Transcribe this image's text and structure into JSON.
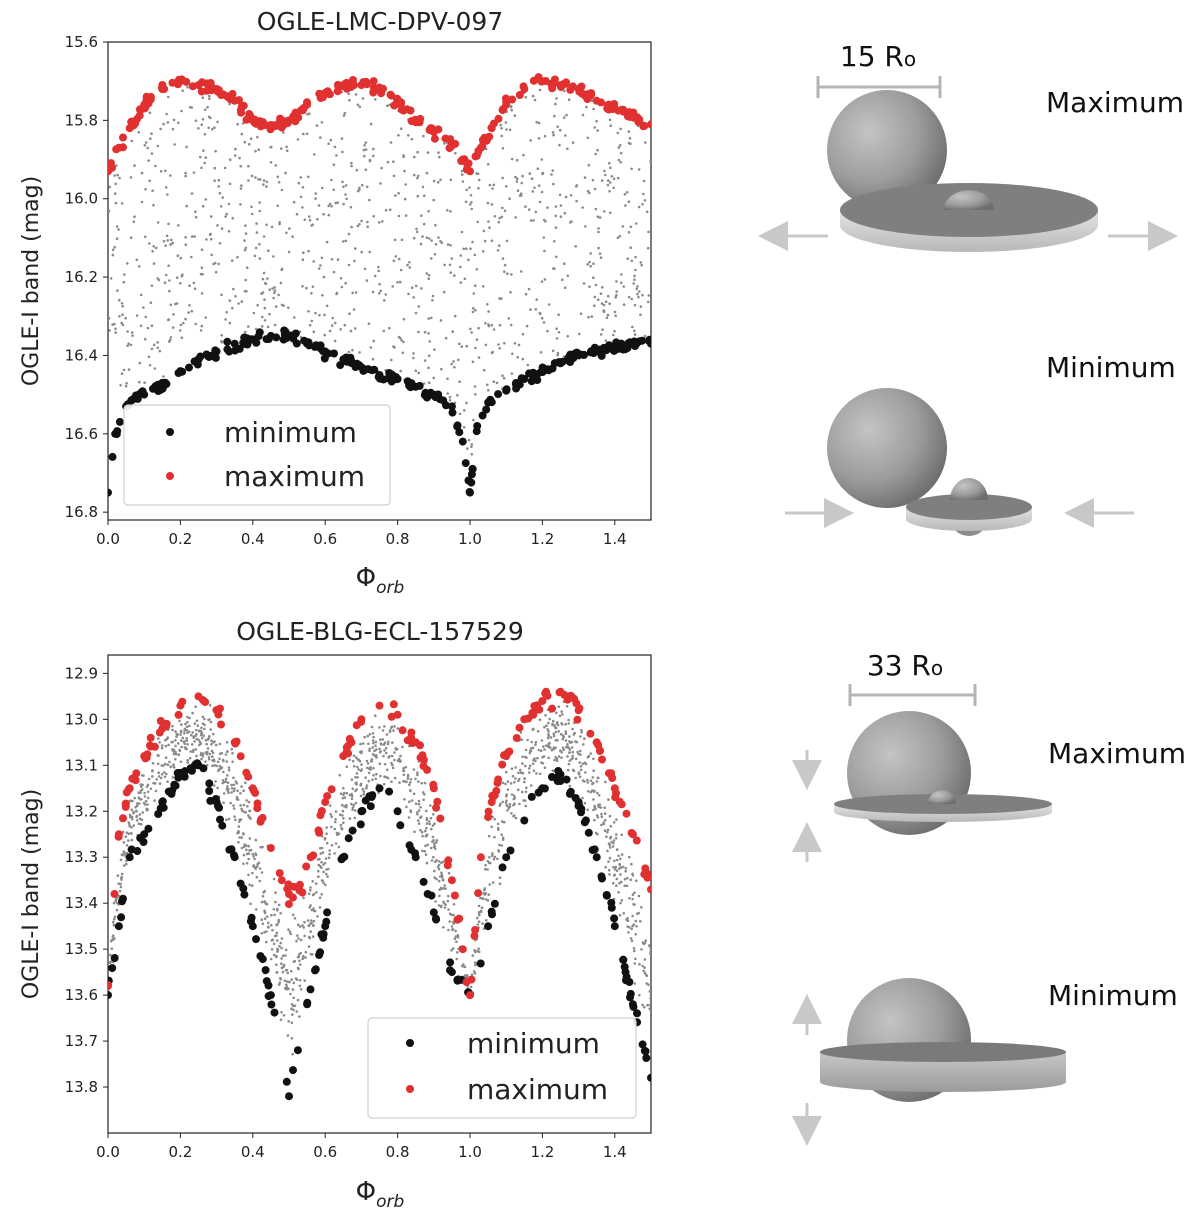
{
  "chart_data": [
    {
      "type": "scatter",
      "title": "OGLE-LMC-DPV-097",
      "xlabel": "Φ",
      "xlabel_sub": "orb",
      "ylabel": "OGLE-I band (mag)",
      "xlim": [
        0.0,
        1.5
      ],
      "ylim": [
        16.82,
        15.6
      ],
      "y_inverted": true,
      "xticks": [
        0.0,
        0.2,
        0.4,
        0.6,
        0.8,
        1.0,
        1.2,
        1.4
      ],
      "xtick_labels": [
        "0.0",
        "0.2",
        "0.4",
        "0.6",
        "0.8",
        "1.0",
        "1.2",
        "1.4"
      ],
      "yticks": [
        15.6,
        15.8,
        16.0,
        16.2,
        16.4,
        16.6,
        16.8
      ],
      "ytick_labels": [
        "15.6",
        "15.8",
        "16.0",
        "16.2",
        "16.4",
        "16.6",
        "16.8"
      ],
      "legend": {
        "position": "lower-left",
        "entries": [
          "minimum",
          "maximum"
        ]
      },
      "series": [
        {
          "name": "all data",
          "color": "#8a8a8a",
          "marker": "small-dot",
          "description_range": [
            15.8,
            16.55
          ]
        },
        {
          "name": "minimum",
          "color": "#111111",
          "marker": "dot",
          "x": [
            0.0,
            0.02,
            0.05,
            0.1,
            0.15,
            0.2,
            0.25,
            0.3,
            0.35,
            0.4,
            0.45,
            0.5,
            0.55,
            0.6,
            0.65,
            0.7,
            0.75,
            0.8,
            0.85,
            0.9,
            0.95,
            0.98,
            1.0,
            1.02,
            1.05,
            1.1,
            1.15,
            1.2,
            1.25,
            1.3,
            1.35,
            1.4,
            1.45,
            1.5
          ],
          "y": [
            16.75,
            16.6,
            16.53,
            16.5,
            16.47,
            16.44,
            16.41,
            16.39,
            16.37,
            16.36,
            16.35,
            16.35,
            16.37,
            16.39,
            16.41,
            16.43,
            16.45,
            16.46,
            16.48,
            16.5,
            16.53,
            16.62,
            16.75,
            16.58,
            16.52,
            16.49,
            16.46,
            16.44,
            16.42,
            16.4,
            16.39,
            16.38,
            16.37,
            16.37
          ]
        },
        {
          "name": "maximum",
          "color": "#e03030",
          "marker": "dot",
          "x": [
            0.0,
            0.03,
            0.06,
            0.1,
            0.15,
            0.2,
            0.25,
            0.3,
            0.35,
            0.4,
            0.45,
            0.5,
            0.55,
            0.6,
            0.65,
            0.7,
            0.75,
            0.8,
            0.85,
            0.9,
            0.95,
            0.98,
            1.0,
            1.03,
            1.06,
            1.1,
            1.15,
            1.2,
            1.25,
            1.3,
            1.35,
            1.4,
            1.45,
            1.5
          ],
          "y": [
            15.93,
            15.87,
            15.82,
            15.76,
            15.72,
            15.7,
            15.71,
            15.72,
            15.75,
            15.8,
            15.82,
            15.8,
            15.76,
            15.73,
            15.71,
            15.71,
            15.72,
            15.75,
            15.8,
            15.83,
            15.86,
            15.9,
            15.93,
            15.87,
            15.82,
            15.76,
            15.72,
            15.7,
            15.71,
            15.72,
            15.75,
            15.77,
            15.79,
            15.81
          ]
        }
      ]
    },
    {
      "type": "scatter",
      "title": "OGLE-BLG-ECL-157529",
      "xlabel": "Φ",
      "xlabel_sub": "orb",
      "ylabel": "OGLE-I band (mag)",
      "xlim": [
        0.0,
        1.5
      ],
      "ylim": [
        13.9,
        12.86
      ],
      "y_inverted": true,
      "xticks": [
        0.0,
        0.2,
        0.4,
        0.6,
        0.8,
        1.0,
        1.2,
        1.4
      ],
      "xtick_labels": [
        "0.0",
        "0.2",
        "0.4",
        "0.6",
        "0.8",
        "1.0",
        "1.2",
        "1.4"
      ],
      "yticks": [
        12.9,
        13.0,
        13.1,
        13.2,
        13.3,
        13.4,
        13.5,
        13.6,
        13.7,
        13.8
      ],
      "ytick_labels": [
        "12.9",
        "13.0",
        "13.1",
        "13.2",
        "13.3",
        "13.4",
        "13.5",
        "13.6",
        "13.7",
        "13.8"
      ],
      "legend": {
        "position": "lower-right",
        "entries": [
          "minimum",
          "maximum"
        ]
      },
      "series": [
        {
          "name": "all data",
          "color": "#8a8a8a",
          "marker": "small-dot"
        },
        {
          "name": "minimum",
          "color": "#111111",
          "marker": "dot",
          "x": [
            0.0,
            0.03,
            0.06,
            0.1,
            0.15,
            0.2,
            0.25,
            0.3,
            0.35,
            0.4,
            0.45,
            0.5,
            0.55,
            0.6,
            0.65,
            0.7,
            0.75,
            0.8,
            0.85,
            0.9,
            0.95,
            1.0,
            1.05,
            1.1,
            1.15,
            1.2,
            1.25,
            1.3,
            1.35,
            1.4,
            1.45,
            1.5
          ],
          "y": [
            13.6,
            13.45,
            13.3,
            13.25,
            13.18,
            13.12,
            13.1,
            13.18,
            13.3,
            13.45,
            13.6,
            13.82,
            13.62,
            13.45,
            13.3,
            13.2,
            13.15,
            13.2,
            13.3,
            13.42,
            13.55,
            13.6,
            13.45,
            13.3,
            13.22,
            13.15,
            13.12,
            13.18,
            13.3,
            13.45,
            13.62,
            13.78
          ]
        },
        {
          "name": "maximum",
          "color": "#e03030",
          "marker": "dot",
          "x": [
            0.0,
            0.03,
            0.06,
            0.1,
            0.15,
            0.2,
            0.25,
            0.3,
            0.35,
            0.4,
            0.45,
            0.48,
            0.5,
            0.53,
            0.56,
            0.6,
            0.65,
            0.7,
            0.75,
            0.8,
            0.85,
            0.9,
            0.95,
            0.98,
            1.0,
            1.03,
            1.06,
            1.1,
            1.15,
            1.2,
            1.25,
            1.3,
            1.35,
            1.4,
            1.45,
            1.5
          ],
          "y": [
            13.58,
            13.25,
            13.15,
            13.08,
            13.02,
            12.97,
            12.95,
            12.98,
            13.05,
            13.15,
            13.28,
            13.35,
            13.38,
            13.36,
            13.3,
            13.18,
            13.08,
            13.0,
            12.97,
            12.99,
            13.05,
            13.15,
            13.35,
            13.5,
            13.6,
            13.3,
            13.18,
            13.08,
            13.0,
            12.96,
            12.94,
            12.98,
            13.05,
            13.15,
            13.25,
            13.37
          ]
        }
      ]
    }
  ],
  "diagrams": [
    {
      "scale_label": "15 R",
      "scale_sub": "o",
      "state_top": "Maximum",
      "state_bottom": "Minimum"
    },
    {
      "scale_label": "33 R",
      "scale_sub": "o",
      "state_top": "Maximum",
      "state_bottom": "Minimum"
    }
  ],
  "colors": {
    "minimum": "#111111",
    "maximum": "#e03030",
    "all_data": "#8a8a8a",
    "sphere_light": "#bdbdbd",
    "sphere_dark": "#7a7a7a",
    "disk_top": "#7f7f7f",
    "disk_edge": "#dcdcdc",
    "arrow": "#c8c8c8"
  }
}
